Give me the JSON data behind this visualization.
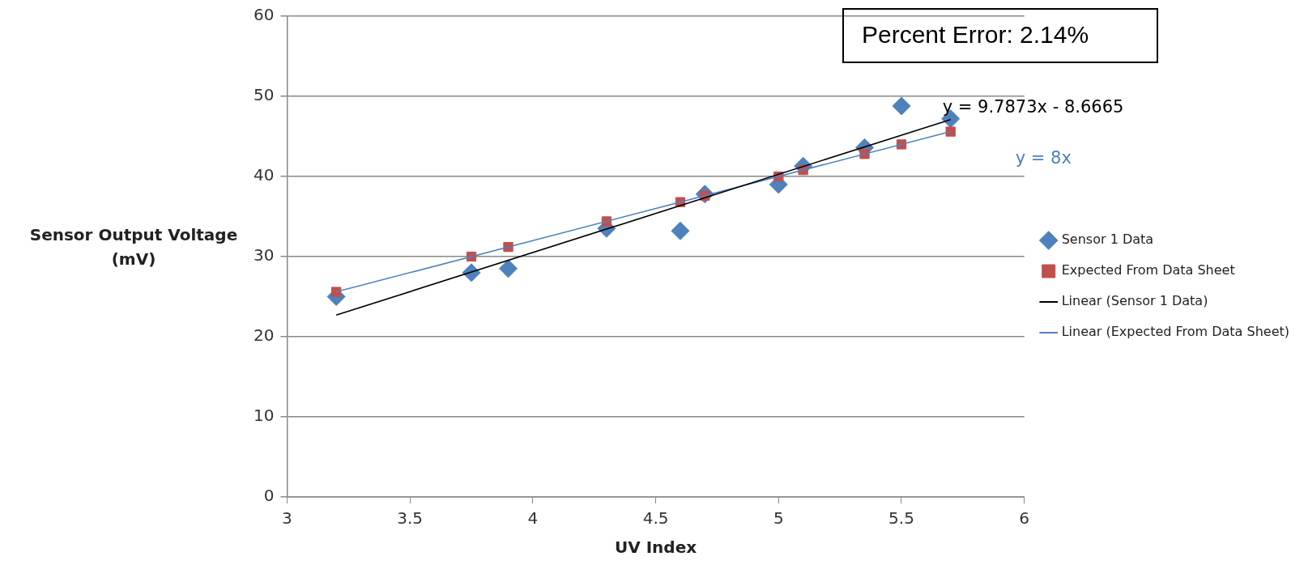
{
  "chart_data": {
    "type": "scatter",
    "xlabel": "UV Index",
    "ylabel": "Sensor Output Voltage (mV)",
    "xlim": [
      3,
      6
    ],
    "xticks": [
      3,
      3.5,
      4,
      4.5,
      5,
      5.5,
      6
    ],
    "ylim": [
      0,
      60
    ],
    "yticks": [
      0,
      10,
      20,
      30,
      40,
      50,
      60
    ],
    "grid": "y",
    "legend": "right",
    "series": [
      {
        "name": "Sensor 1 Data",
        "type": "scatter",
        "marker": "diamond",
        "color": "#4f81bd",
        "x": [
          3.2,
          3.75,
          3.9,
          4.3,
          4.6,
          4.7,
          5.0,
          5.1,
          5.35,
          5.5,
          5.7
        ],
        "values": [
          25,
          28,
          28.5,
          33.5,
          33.2,
          37.8,
          39,
          41.3,
          43.6,
          48.8,
          47.2
        ]
      },
      {
        "name": "Expected From Data Sheet",
        "type": "scatter",
        "marker": "square",
        "color": "#c0504d",
        "x": [
          3.2,
          3.75,
          3.9,
          4.3,
          4.6,
          4.7,
          5.0,
          5.1,
          5.35,
          5.5,
          5.7
        ],
        "values": [
          25.6,
          30,
          31.2,
          34.4,
          36.8,
          37.6,
          40,
          40.8,
          42.8,
          44,
          45.6
        ]
      },
      {
        "name": "Linear (Sensor 1 Data)",
        "type": "line",
        "marker": "none",
        "color": "#000000",
        "x": [
          3.2,
          5.7
        ],
        "values": [
          22.7,
          47.1
        ]
      },
      {
        "name": "Linear (Expected From Data Sheet)",
        "type": "line",
        "marker": "none",
        "color": "#4f81bd",
        "x": [
          3.2,
          5.7
        ],
        "values": [
          25.6,
          45.6
        ]
      }
    ],
    "annotations": [
      "y = 9.7873x - 8.6665",
      "y = 8x",
      "Percent Error: 2.14%"
    ]
  }
}
